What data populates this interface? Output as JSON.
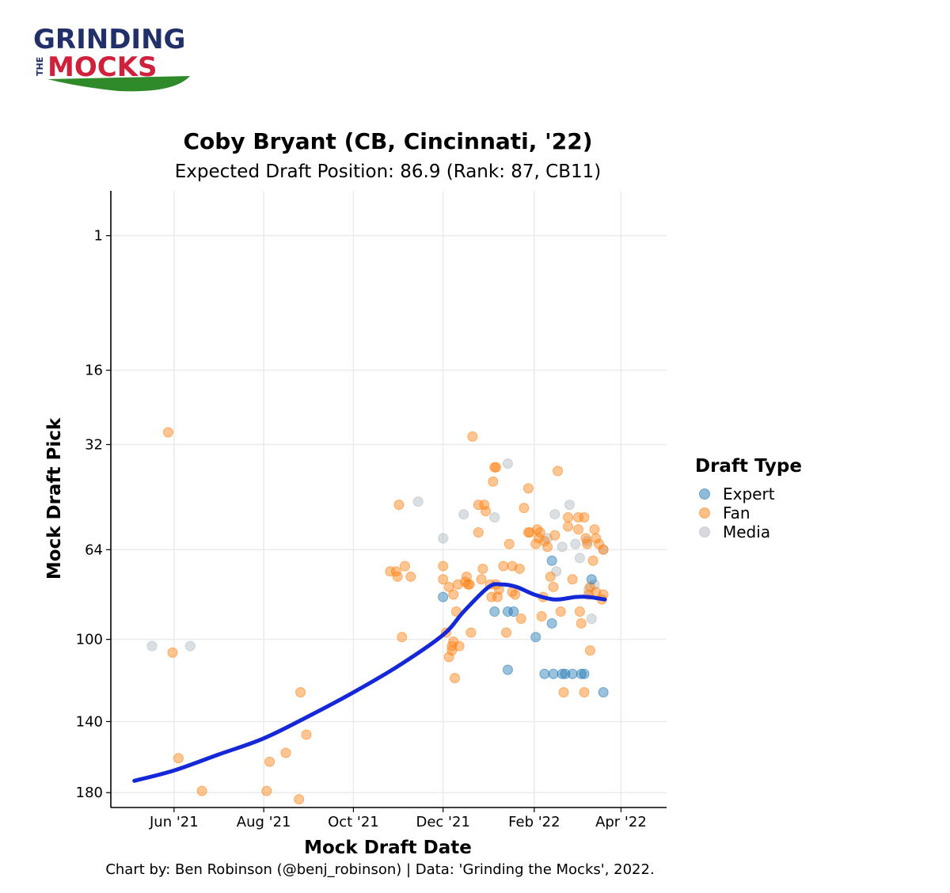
{
  "logo": {
    "line1": "GRINDING",
    "the": "THE",
    "line2": "MOCKS"
  },
  "caption": "Chart by: Ben Robinson (@benj_robinson) | Data: 'Grinding the Mocks', 2022.",
  "colors": {
    "expert": "#1f77b4",
    "fan": "#ff7f0e",
    "media": "#b0b7bf",
    "trend": "#1428d8",
    "logo_navy": "#22306a",
    "logo_red": "#d0213c",
    "logo_green": "#2f8a2a",
    "grid": "#ebebeb"
  },
  "chart_data": {
    "type": "scatter",
    "title": "Coby Bryant (CB, Cincinnati, '22)",
    "subtitle": "Expected Draft Position: 86.9 (Rank: 87, CB11)",
    "xlabel": "Mock Draft Date",
    "ylabel": "Mock Draft Pick",
    "x_ticks": [
      {
        "label": "Jun '21",
        "date": "2021-06-01"
      },
      {
        "label": "Aug '21",
        "date": "2021-08-01"
      },
      {
        "label": "Oct '21",
        "date": "2021-10-01"
      },
      {
        "label": "Dec '21",
        "date": "2021-12-01"
      },
      {
        "label": "Feb '22",
        "date": "2022-02-01"
      },
      {
        "label": "Apr '22",
        "date": "2022-04-01"
      }
    ],
    "xlim": [
      "2021-04-19",
      "2022-05-02"
    ],
    "y_scale": "sqrt",
    "y_reversed": true,
    "y_ticks": [
      1,
      16,
      32,
      64,
      100,
      140,
      180
    ],
    "ylim": [
      0,
      189
    ],
    "grid": true,
    "legend": {
      "title": "Draft Type",
      "position": "right",
      "entries": [
        "Expert",
        "Fan",
        "Media"
      ]
    },
    "series": [
      {
        "name": "Expert",
        "points": [
          {
            "x": "2022-02-13",
            "y": 68
          },
          {
            "x": "2021-12-01",
            "y": 82
          },
          {
            "x": "2022-01-05",
            "y": 88
          },
          {
            "x": "2022-01-14",
            "y": 88
          },
          {
            "x": "2022-01-18",
            "y": 88
          },
          {
            "x": "2022-03-12",
            "y": 75
          },
          {
            "x": "2022-02-13",
            "y": 93
          },
          {
            "x": "2022-02-02",
            "y": 99
          },
          {
            "x": "2022-01-14",
            "y": 114
          },
          {
            "x": "2022-02-08",
            "y": 116
          },
          {
            "x": "2022-02-14",
            "y": 116
          },
          {
            "x": "2022-02-20",
            "y": 116
          },
          {
            "x": "2022-02-22",
            "y": 116
          },
          {
            "x": "2022-02-27",
            "y": 116
          },
          {
            "x": "2022-03-05",
            "y": 116
          },
          {
            "x": "2022-03-07",
            "y": 116
          },
          {
            "x": "2022-03-20",
            "y": 125
          }
        ]
      },
      {
        "name": "Fan",
        "points": [
          {
            "x": "2021-05-28",
            "y": 29
          },
          {
            "x": "2021-05-31",
            "y": 106
          },
          {
            "x": "2021-06-04",
            "y": 160
          },
          {
            "x": "2021-06-20",
            "y": 179
          },
          {
            "x": "2021-08-03",
            "y": 179
          },
          {
            "x": "2021-08-05",
            "y": 162
          },
          {
            "x": "2021-08-16",
            "y": 157
          },
          {
            "x": "2021-08-25",
            "y": 184
          },
          {
            "x": "2021-08-26",
            "y": 125
          },
          {
            "x": "2021-08-30",
            "y": 147
          },
          {
            "x": "2021-10-26",
            "y": 72
          },
          {
            "x": "2021-10-30",
            "y": 72
          },
          {
            "x": "2021-10-31",
            "y": 74
          },
          {
            "x": "2021-11-01",
            "y": 49
          },
          {
            "x": "2021-11-05",
            "y": 70
          },
          {
            "x": "2021-11-09",
            "y": 74
          },
          {
            "x": "2021-11-03",
            "y": 99
          },
          {
            "x": "2021-12-01",
            "y": 70
          },
          {
            "x": "2021-12-01",
            "y": 75
          },
          {
            "x": "2021-12-03",
            "y": 97
          },
          {
            "x": "2021-12-05",
            "y": 78
          },
          {
            "x": "2021-12-05",
            "y": 108
          },
          {
            "x": "2021-12-07",
            "y": 103
          },
          {
            "x": "2021-12-07",
            "y": 105
          },
          {
            "x": "2021-12-08",
            "y": 101
          },
          {
            "x": "2021-12-08",
            "y": 81
          },
          {
            "x": "2021-12-09",
            "y": 118
          },
          {
            "x": "2021-12-10",
            "y": 88
          },
          {
            "x": "2021-12-11",
            "y": 77
          },
          {
            "x": "2021-12-12",
            "y": 103
          },
          {
            "x": "2021-12-16",
            "y": 76
          },
          {
            "x": "2021-12-17",
            "y": 74
          },
          {
            "x": "2021-12-18",
            "y": 77
          },
          {
            "x": "2021-12-19",
            "y": 77
          },
          {
            "x": "2021-12-20",
            "y": 97
          },
          {
            "x": "2021-12-21",
            "y": 30
          },
          {
            "x": "2021-12-25",
            "y": 58
          },
          {
            "x": "2021-12-25",
            "y": 49
          },
          {
            "x": "2021-12-27",
            "y": 75
          },
          {
            "x": "2021-12-28",
            "y": 71
          },
          {
            "x": "2021-12-29",
            "y": 49
          },
          {
            "x": "2021-12-30",
            "y": 51
          },
          {
            "x": "2022-01-02",
            "y": 77
          },
          {
            "x": "2022-01-03",
            "y": 82
          },
          {
            "x": "2022-01-04",
            "y": 42
          },
          {
            "x": "2022-01-05",
            "y": 38
          },
          {
            "x": "2022-01-06",
            "y": 38
          },
          {
            "x": "2022-01-06",
            "y": 77
          },
          {
            "x": "2022-01-07",
            "y": 82
          },
          {
            "x": "2022-01-08",
            "y": 79
          },
          {
            "x": "2022-01-11",
            "y": 70
          },
          {
            "x": "2022-01-13",
            "y": 97
          },
          {
            "x": "2022-01-15",
            "y": 62
          },
          {
            "x": "2022-01-17",
            "y": 70
          },
          {
            "x": "2022-01-17",
            "y": 80
          },
          {
            "x": "2022-01-19",
            "y": 81
          },
          {
            "x": "2022-01-22",
            "y": 71
          },
          {
            "x": "2022-01-23",
            "y": 91
          },
          {
            "x": "2022-01-25",
            "y": 50
          },
          {
            "x": "2022-01-28",
            "y": 44
          },
          {
            "x": "2022-01-28",
            "y": 58
          },
          {
            "x": "2022-01-29",
            "y": 58
          },
          {
            "x": "2022-02-02",
            "y": 62
          },
          {
            "x": "2022-02-03",
            "y": 57
          },
          {
            "x": "2022-02-04",
            "y": 60
          },
          {
            "x": "2022-02-05",
            "y": 58
          },
          {
            "x": "2022-02-06",
            "y": 90
          },
          {
            "x": "2022-02-07",
            "y": 82
          },
          {
            "x": "2022-02-08",
            "y": 61
          },
          {
            "x": "2022-02-10",
            "y": 63
          },
          {
            "x": "2022-02-12",
            "y": 74
          },
          {
            "x": "2022-02-14",
            "y": 78
          },
          {
            "x": "2022-02-15",
            "y": 59
          },
          {
            "x": "2022-02-17",
            "y": 39
          },
          {
            "x": "2022-02-19",
            "y": 88
          },
          {
            "x": "2022-02-21",
            "y": 125
          },
          {
            "x": "2022-02-24",
            "y": 53
          },
          {
            "x": "2022-02-24",
            "y": 56
          },
          {
            "x": "2022-02-27",
            "y": 75
          },
          {
            "x": "2022-03-03",
            "y": 57
          },
          {
            "x": "2022-03-03",
            "y": 53
          },
          {
            "x": "2022-03-04",
            "y": 88
          },
          {
            "x": "2022-03-05",
            "y": 93
          },
          {
            "x": "2022-03-07",
            "y": 125
          },
          {
            "x": "2022-03-07",
            "y": 53
          },
          {
            "x": "2022-03-08",
            "y": 60
          },
          {
            "x": "2022-03-09",
            "y": 62
          },
          {
            "x": "2022-03-10",
            "y": 81
          },
          {
            "x": "2022-03-11",
            "y": 105
          },
          {
            "x": "2022-03-11",
            "y": 78
          },
          {
            "x": "2022-03-13",
            "y": 68
          },
          {
            "x": "2022-03-14",
            "y": 57
          },
          {
            "x": "2022-03-15",
            "y": 60
          },
          {
            "x": "2022-03-15",
            "y": 80
          },
          {
            "x": "2022-03-17",
            "y": 62
          },
          {
            "x": "2022-03-19",
            "y": 83
          },
          {
            "x": "2022-03-20",
            "y": 81
          },
          {
            "x": "2022-03-20",
            "y": 64
          }
        ]
      },
      {
        "name": "Media",
        "points": [
          {
            "x": "2021-05-17",
            "y": 103
          },
          {
            "x": "2021-06-12",
            "y": 103
          },
          {
            "x": "2021-11-14",
            "y": 48
          },
          {
            "x": "2021-12-01",
            "y": 60
          },
          {
            "x": "2021-12-15",
            "y": 52
          },
          {
            "x": "2022-01-05",
            "y": 53
          },
          {
            "x": "2022-01-14",
            "y": 37
          },
          {
            "x": "2022-02-10",
            "y": 60
          },
          {
            "x": "2022-02-15",
            "y": 52
          },
          {
            "x": "2022-02-16",
            "y": 72
          },
          {
            "x": "2022-02-20",
            "y": 63
          },
          {
            "x": "2022-02-25",
            "y": 49
          },
          {
            "x": "2022-03-01",
            "y": 62
          },
          {
            "x": "2022-03-04",
            "y": 67
          },
          {
            "x": "2022-03-09",
            "y": 61
          },
          {
            "x": "2022-03-10",
            "y": 79
          },
          {
            "x": "2022-03-12",
            "y": 91
          },
          {
            "x": "2022-03-14",
            "y": 77
          },
          {
            "x": "2022-03-20",
            "y": 64
          }
        ]
      },
      {
        "name": "Trend",
        "type": "line",
        "points": [
          {
            "x": "2021-05-05",
            "y": 173
          },
          {
            "x": "2021-06-01",
            "y": 167
          },
          {
            "x": "2021-07-01",
            "y": 158
          },
          {
            "x": "2021-08-01",
            "y": 149
          },
          {
            "x": "2021-09-01",
            "y": 137
          },
          {
            "x": "2021-10-01",
            "y": 125
          },
          {
            "x": "2021-11-01",
            "y": 112
          },
          {
            "x": "2021-12-01",
            "y": 98
          },
          {
            "x": "2021-12-15",
            "y": 88
          },
          {
            "x": "2022-01-01",
            "y": 78
          },
          {
            "x": "2022-01-10",
            "y": 77
          },
          {
            "x": "2022-01-20",
            "y": 78
          },
          {
            "x": "2022-02-01",
            "y": 81
          },
          {
            "x": "2022-02-15",
            "y": 83
          },
          {
            "x": "2022-03-01",
            "y": 82
          },
          {
            "x": "2022-03-10",
            "y": 82
          },
          {
            "x": "2022-03-21",
            "y": 83
          }
        ]
      }
    ]
  }
}
